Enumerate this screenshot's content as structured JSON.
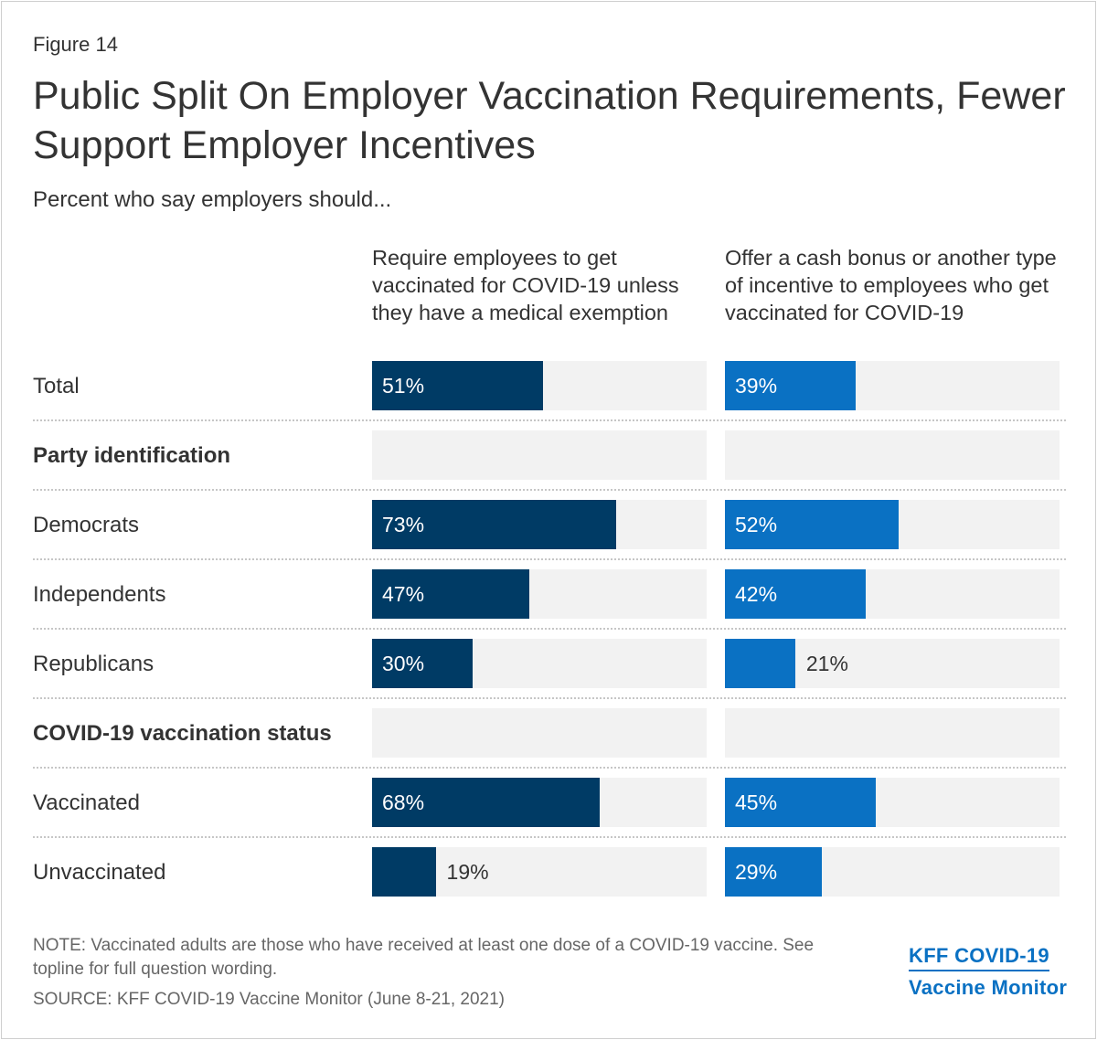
{
  "figure_label": "Figure 14",
  "title": "Public Split On Employer Vaccination Requirements, Fewer Support Employer Incentives",
  "subtitle": "Percent who say employers should...",
  "colors": {
    "require": "#003b65",
    "incentive": "#0a71c3",
    "track": "#f2f2f2"
  },
  "chart_data": {
    "type": "bar",
    "orientation": "horizontal",
    "title": "Public Split On Employer Vaccination Requirements, Fewer Support Employer Incentives",
    "subtitle": "Percent who say employers should...",
    "xlim": [
      0,
      100
    ],
    "series": [
      {
        "name": "Require employees to get vaccinated for COVID-19 unless they have a medical exemption",
        "color": "#003b65"
      },
      {
        "name": "Offer a cash bonus or another type of incentive to employees who get vaccinated for COVID-19",
        "color": "#0a71c3"
      }
    ],
    "rows": [
      {
        "label": "Total",
        "header": false,
        "values": [
          51,
          39
        ],
        "display": [
          "51%",
          "39%"
        ]
      },
      {
        "label": "Party identification",
        "header": true,
        "values": [
          null,
          null
        ],
        "display": [
          "",
          ""
        ]
      },
      {
        "label": "Democrats",
        "header": false,
        "values": [
          73,
          52
        ],
        "display": [
          "73%",
          "52%"
        ]
      },
      {
        "label": "Independents",
        "header": false,
        "values": [
          47,
          42
        ],
        "display": [
          "47%",
          "42%"
        ]
      },
      {
        "label": "Republicans",
        "header": false,
        "values": [
          30,
          21
        ],
        "display": [
          "30%",
          "21%"
        ]
      },
      {
        "label": "COVID-19 vaccination status",
        "header": true,
        "values": [
          null,
          null
        ],
        "display": [
          "",
          ""
        ]
      },
      {
        "label": "Vaccinated",
        "header": false,
        "values": [
          68,
          45
        ],
        "display": [
          "68%",
          "45%"
        ]
      },
      {
        "label": "Unvaccinated",
        "header": false,
        "values": [
          19,
          29
        ],
        "display": [
          "19%",
          "29%"
        ]
      }
    ]
  },
  "footer": {
    "note": "NOTE: Vaccinated adults are those who have received at least one dose of a COVID-19 vaccine. See topline for full question wording.",
    "source": "SOURCE: KFF COVID-19 Vaccine Monitor (June 8-21, 2021)",
    "brand_line1": "KFF COVID-19",
    "brand_line2": "Vaccine Monitor"
  }
}
